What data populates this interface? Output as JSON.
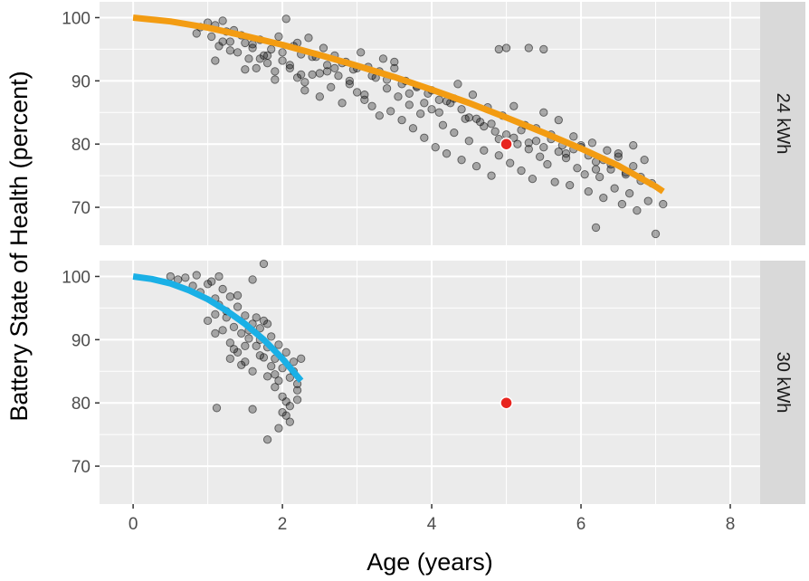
{
  "chart_data": {
    "type": "scatter",
    "facet_layout": "rows",
    "xlabel": "Age (years)",
    "ylabel": "Battery State of Health (percent)",
    "xlim": [
      -0.45,
      8.4
    ],
    "ylim": [
      64,
      102.5
    ],
    "x_ticks": [
      0,
      2,
      4,
      6,
      8
    ],
    "y_ticks": [
      70,
      80,
      90,
      100
    ],
    "grid": true,
    "colors": {
      "panel_bg": "#ebebeb",
      "grid": "#ffffff",
      "strip_bg": "#d9d9d9",
      "points": "#000000",
      "highlight": "#e8251f",
      "fit_24": "#f39c12",
      "fit_30": "#1ab0e6"
    },
    "panels": [
      {
        "label": "24 kWh",
        "fit_color": "#f39c12",
        "fit_curve": {
          "x": [
            0,
            0.5,
            1,
            1.5,
            2,
            2.5,
            3,
            3.5,
            4,
            4.5,
            5,
            5.5,
            6,
            6.5,
            7,
            7.1
          ],
          "y": [
            100,
            99.4,
            98.4,
            97.1,
            95.7,
            94.1,
            92.4,
            90.6,
            88.6,
            86.5,
            84.2,
            81.8,
            79.3,
            76.6,
            73.3,
            72.5
          ]
        },
        "highlight_point": {
          "x": 5,
          "y": 80
        },
        "points": {
          "x": [
            0.85,
            0.9,
            1.0,
            1.05,
            1.1,
            1.15,
            1.2,
            1.25,
            1.3,
            1.35,
            1.4,
            1.45,
            1.5,
            1.55,
            1.6,
            1.65,
            1.7,
            1.75,
            1.8,
            1.85,
            1.9,
            1.95,
            2.0,
            2.05,
            2.1,
            2.15,
            2.2,
            2.25,
            2.3,
            2.35,
            2.4,
            2.45,
            2.5,
            2.55,
            2.6,
            2.65,
            2.7,
            2.75,
            2.8,
            2.85,
            2.9,
            2.95,
            3.0,
            3.05,
            3.1,
            3.15,
            3.2,
            3.25,
            3.3,
            3.35,
            3.4,
            3.45,
            3.5,
            3.55,
            3.6,
            3.65,
            3.7,
            3.75,
            3.8,
            3.85,
            3.9,
            3.95,
            4.0,
            4.05,
            4.1,
            4.15,
            4.2,
            4.25,
            4.3,
            4.35,
            4.4,
            4.45,
            4.5,
            4.55,
            4.6,
            4.65,
            4.7,
            4.75,
            4.8,
            4.85,
            4.9,
            4.95,
            5.0,
            5.05,
            5.1,
            5.15,
            5.2,
            5.25,
            5.3,
            5.35,
            5.4,
            5.45,
            5.5,
            5.55,
            5.6,
            5.65,
            5.7,
            5.75,
            5.8,
            5.85,
            5.9,
            5.95,
            6.0,
            6.05,
            6.1,
            6.15,
            6.2,
            6.25,
            6.3,
            6.35,
            6.4,
            6.45,
            6.5,
            6.55,
            6.6,
            6.65,
            6.7,
            6.75,
            6.8,
            6.85,
            6.9,
            6.95,
            7.0,
            7.1,
            1.1,
            1.3,
            1.5,
            1.7,
            1.9,
            2.1,
            2.3,
            2.5,
            2.7,
            2.9,
            3.1,
            3.3,
            3.5,
            3.7,
            3.9,
            4.1,
            4.3,
            4.5,
            4.7,
            4.9,
            5.1,
            5.3,
            5.5,
            5.7,
            5.9,
            6.1,
            6.3,
            6.5,
            6.7,
            1.2,
            1.6,
            2.0,
            2.4,
            2.8,
            3.2,
            3.6,
            4.0,
            4.4,
            4.8,
            5.2,
            5.6,
            6.0,
            6.4,
            6.8,
            2.2,
            2.6,
            3.0,
            3.4,
            3.8,
            4.2,
            4.6,
            5.0,
            5.4,
            5.8,
            6.2,
            6.6,
            1.8,
            2.25,
            4.9,
            5.3,
            5.5,
            6.2
          ],
          "y": [
            97.5,
            98.5,
            99.2,
            97.0,
            98.8,
            95.5,
            99.5,
            97.8,
            96.2,
            98.0,
            94.5,
            97.2,
            96.0,
            93.5,
            95.8,
            92.0,
            96.5,
            94.0,
            92.8,
            95.0,
            91.5,
            97.0,
            93.2,
            99.8,
            92.0,
            95.5,
            90.5,
            94.2,
            88.5,
            96.8,
            91.0,
            93.8,
            87.5,
            95.2,
            92.5,
            89.0,
            94.0,
            90.8,
            86.5,
            93.0,
            89.5,
            91.8,
            88.2,
            94.5,
            87.0,
            92.2,
            86.0,
            90.5,
            84.5,
            93.5,
            88.8,
            85.2,
            92.0,
            87.5,
            83.8,
            90.0,
            86.2,
            82.5,
            89.2,
            84.8,
            81.0,
            88.0,
            85.5,
            79.5,
            87.0,
            83.0,
            78.5,
            86.5,
            81.8,
            89.5,
            77.5,
            84.0,
            80.5,
            87.8,
            76.5,
            83.5,
            79.0,
            85.8,
            75.0,
            82.0,
            78.2,
            84.5,
            81.5,
            77.0,
            86.0,
            80.0,
            75.8,
            83.0,
            79.2,
            74.5,
            82.5,
            78.0,
            85.0,
            76.8,
            80.8,
            74.0,
            83.8,
            79.8,
            77.8,
            73.5,
            81.2,
            76.2,
            79.5,
            75.2,
            72.5,
            80.2,
            77.2,
            74.8,
            71.5,
            79.0,
            76.0,
            73.0,
            78.5,
            70.5,
            75.5,
            72.2,
            79.8,
            69.5,
            74.2,
            77.5,
            71.0,
            73.8,
            65.8,
            70.5,
            93.2,
            94.8,
            91.8,
            93.5,
            90.2,
            92.5,
            89.8,
            91.2,
            92.0,
            90.0,
            87.8,
            91.5,
            93.0,
            88.0,
            86.5,
            85.0,
            87.2,
            84.2,
            82.8,
            80.8,
            81.0,
            80.2,
            79.5,
            78.8,
            79.2,
            78.2,
            77.5,
            78.0,
            76.5,
            96.2,
            95.2,
            94.5,
            93.8,
            92.8,
            90.8,
            89.5,
            88.5,
            85.5,
            83.2,
            82.2,
            81.5,
            79.8,
            76.8,
            74.8,
            96.0,
            91.5,
            92.0,
            90.2,
            89.0,
            86.8,
            84.0,
            95.2,
            80.5,
            78.5,
            76.0,
            75.2,
            94.0,
            91.0,
            95.0,
            95.2,
            95.0,
            66.8
          ]
        }
      },
      {
        "label": "30 kWh",
        "fit_color": "#1ab0e6",
        "fit_curve": {
          "x": [
            0,
            0.25,
            0.5,
            0.75,
            1,
            1.25,
            1.5,
            1.75,
            2,
            2.25
          ],
          "y": [
            100,
            99.6,
            98.9,
            97.8,
            96.4,
            94.6,
            92.5,
            90.0,
            87.0,
            83.5
          ]
        },
        "highlight_point": {
          "x": 5,
          "y": 80
        },
        "points": {
          "x": [
            0.5,
            0.6,
            0.7,
            0.8,
            0.85,
            0.9,
            1.0,
            1.05,
            1.1,
            1.1,
            1.15,
            1.2,
            1.2,
            1.25,
            1.3,
            1.3,
            1.35,
            1.4,
            1.4,
            1.45,
            1.5,
            1.5,
            1.55,
            1.6,
            1.6,
            1.65,
            1.7,
            1.7,
            1.75,
            1.8,
            1.8,
            1.85,
            1.9,
            1.9,
            1.95,
            2.0,
            2.0,
            2.05,
            2.1,
            2.1,
            2.15,
            2.2,
            2.2,
            2.25,
            1.0,
            1.1,
            1.25,
            1.35,
            1.45,
            1.55,
            1.65,
            1.75,
            1.85,
            1.95,
            2.05,
            2.15,
            1.15,
            1.4,
            1.6,
            1.8,
            2.0,
            2.2,
            1.3,
            1.5,
            1.7,
            1.9,
            2.1,
            1.12,
            1.6,
            1.95,
            1.8,
            1.75,
            2.05
          ],
          "y": [
            100,
            99.5,
            99.8,
            98.5,
            100.2,
            97.5,
            98.8,
            99.2,
            96.5,
            94.0,
            95.5,
            98.0,
            91.5,
            93.5,
            96.8,
            89.5,
            92.0,
            95.2,
            88.0,
            91.0,
            93.8,
            86.5,
            90.2,
            92.5,
            85.0,
            89.0,
            91.8,
            87.5,
            93.0,
            88.8,
            84.2,
            90.5,
            87.0,
            82.5,
            89.2,
            85.5,
            81.0,
            88.0,
            84.0,
            79.5,
            86.5,
            82.0,
            80.5,
            87.0,
            93.0,
            91.0,
            94.5,
            88.5,
            86.0,
            91.5,
            93.5,
            87.2,
            85.8,
            83.5,
            80.2,
            85.0,
            100.0,
            97.0,
            99.5,
            92.5,
            78.5,
            83.0,
            87.0,
            89.0,
            90.0,
            84.5,
            77.0,
            79.2,
            79.0,
            76.0,
            74.2,
            102.0,
            78.0
          ]
        }
      }
    ]
  }
}
